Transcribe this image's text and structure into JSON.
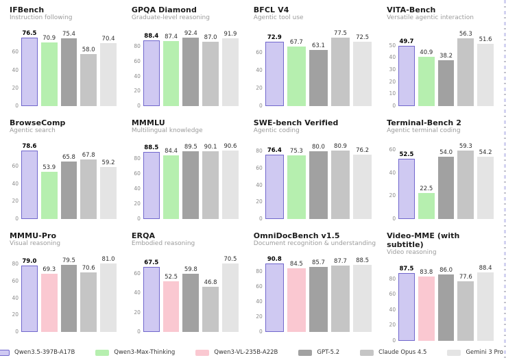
{
  "page": {
    "background": "#ffffff"
  },
  "legend": [
    {
      "model": "Qwen3.5-397B-A17B",
      "fill": "#cfc9f2",
      "border": "#7066cc"
    },
    {
      "model": "Qwen3-Max-Thinking",
      "fill": "#b6efaf",
      "border": "#b6efaf"
    },
    {
      "model": "Qwen3-VL-235B-A22B",
      "fill": "#fac8d1",
      "border": "#fac8d1"
    },
    {
      "model": "GPT-5.2",
      "fill": "#a1a1a1",
      "border": "#a1a1a1"
    },
    {
      "model": "Claude Opus 4.5",
      "fill": "#c5c5c5",
      "border": "#c5c5c5"
    },
    {
      "model": "Gemini 3 Pro",
      "fill": "#e4e4e4",
      "border": "#e4e4e4"
    }
  ],
  "chart_data": [
    {
      "type": "bar",
      "title": "IFBench",
      "subtitle": "Instruction following",
      "ylim": [
        0,
        81
      ],
      "yticks": [
        0,
        20,
        40,
        60
      ],
      "grid": false,
      "legend_position": "bottom-shared",
      "series": [
        {
          "name": "Qwen3.5-397B-A17B",
          "value": 76.5
        },
        {
          "name": "Qwen3-Max-Thinking",
          "value": 70.9
        },
        {
          "name": "GPT-5.2",
          "value": 75.4
        },
        {
          "name": "Claude Opus 4.5",
          "value": 58.0
        },
        {
          "name": "Gemini 3 Pro",
          "value": 70.4
        }
      ]
    },
    {
      "type": "bar",
      "title": "GPQA Diamond",
      "subtitle": "Graduate-level reasoning",
      "ylim": [
        0,
        98
      ],
      "yticks": [
        0,
        20,
        40,
        60,
        80
      ],
      "grid": false,
      "legend_position": "bottom-shared",
      "series": [
        {
          "name": "Qwen3.5-397B-A17B",
          "value": 88.4
        },
        {
          "name": "Qwen3-Max-Thinking",
          "value": 87.4
        },
        {
          "name": "GPT-5.2",
          "value": 92.4
        },
        {
          "name": "Claude Opus 4.5",
          "value": 87.0
        },
        {
          "name": "Gemini 3 Pro",
          "value": 91.9
        }
      ]
    },
    {
      "type": "bar",
      "title": "BFCL V4",
      "subtitle": "Agentic tool use",
      "ylim": [
        0,
        82
      ],
      "yticks": [
        0,
        20,
        40,
        60
      ],
      "grid": false,
      "legend_position": "bottom-shared",
      "series": [
        {
          "name": "Qwen3.5-397B-A17B",
          "value": 72.9
        },
        {
          "name": "Qwen3-Max-Thinking",
          "value": 67.7
        },
        {
          "name": "GPT-5.2",
          "value": 63.1
        },
        {
          "name": "Claude Opus 4.5",
          "value": 77.5
        },
        {
          "name": "Gemini 3 Pro",
          "value": 72.5
        }
      ]
    },
    {
      "type": "bar",
      "title": "VITA-Bench",
      "subtitle": "Versatile agentic interaction",
      "ylim": [
        0,
        60
      ],
      "yticks": [
        0,
        10,
        20,
        30,
        40,
        50
      ],
      "grid": false,
      "legend_position": "bottom-shared",
      "series": [
        {
          "name": "Qwen3.5-397B-A17B",
          "value": 49.7
        },
        {
          "name": "Qwen3-Max-Thinking",
          "value": 40.9
        },
        {
          "name": "GPT-5.2",
          "value": 38.2
        },
        {
          "name": "Claude Opus 4.5",
          "value": 56.3
        },
        {
          "name": "Gemini 3 Pro",
          "value": 51.6
        }
      ]
    },
    {
      "type": "bar",
      "title": "BrowseComp",
      "subtitle": "Agentic search",
      "ylim": [
        0,
        83
      ],
      "yticks": [
        0,
        20,
        40,
        60
      ],
      "grid": false,
      "legend_position": "bottom-shared",
      "series": [
        {
          "name": "Qwen3.5-397B-A17B",
          "value": 78.6
        },
        {
          "name": "Qwen3-Max-Thinking",
          "value": 53.9
        },
        {
          "name": "GPT-5.2",
          "value": 65.8
        },
        {
          "name": "Claude Opus 4.5",
          "value": 67.8
        },
        {
          "name": "Gemini 3 Pro",
          "value": 59.2
        }
      ]
    },
    {
      "type": "bar",
      "title": "MMMLU",
      "subtitle": "Multilingual knowledge",
      "ylim": [
        0,
        96
      ],
      "yticks": [
        0,
        20,
        40,
        60,
        80
      ],
      "grid": false,
      "legend_position": "bottom-shared",
      "series": [
        {
          "name": "Qwen3.5-397B-A17B",
          "value": 88.5
        },
        {
          "name": "Qwen3-Max-Thinking",
          "value": 84.4
        },
        {
          "name": "GPT-5.2",
          "value": 89.5
        },
        {
          "name": "Claude Opus 4.5",
          "value": 90.1
        },
        {
          "name": "Gemini 3 Pro",
          "value": 90.6
        }
      ]
    },
    {
      "type": "bar",
      "title": "SWE-bench Verified",
      "subtitle": "Agentic coding",
      "ylim": [
        0,
        86
      ],
      "yticks": [
        0,
        20,
        40,
        60,
        80
      ],
      "grid": false,
      "legend_position": "bottom-shared",
      "series": [
        {
          "name": "Qwen3.5-397B-A17B",
          "value": 76.4
        },
        {
          "name": "Qwen3-Max-Thinking",
          "value": 75.3
        },
        {
          "name": "GPT-5.2",
          "value": 80.0
        },
        {
          "name": "Claude Opus 4.5",
          "value": 80.9
        },
        {
          "name": "Gemini 3 Pro",
          "value": 76.2
        }
      ]
    },
    {
      "type": "bar",
      "title": "Terminal-Bench 2",
      "subtitle": "Agentic terminal coding",
      "ylim": [
        0,
        63
      ],
      "yticks": [
        0,
        20,
        40,
        60
      ],
      "grid": false,
      "legend_position": "bottom-shared",
      "series": [
        {
          "name": "Qwen3.5-397B-A17B",
          "value": 52.5
        },
        {
          "name": "Qwen3-Max-Thinking",
          "value": 22.5
        },
        {
          "name": "GPT-5.2",
          "value": 54.0
        },
        {
          "name": "Claude Opus 4.5",
          "value": 59.3
        },
        {
          "name": "Gemini 3 Pro",
          "value": 54.2
        }
      ]
    },
    {
      "type": "bar",
      "title": "MMMU-Pro",
      "subtitle": "Visual reasoning",
      "ylim": [
        0,
        86
      ],
      "yticks": [
        0,
        20,
        40,
        60,
        80
      ],
      "grid": false,
      "legend_position": "bottom-shared",
      "series": [
        {
          "name": "Qwen3.5-397B-A17B",
          "value": 79.0
        },
        {
          "name": "Qwen3-VL-235B-A22B",
          "value": 69.3
        },
        {
          "name": "GPT-5.2",
          "value": 79.5
        },
        {
          "name": "Claude Opus 4.5",
          "value": 70.6
        },
        {
          "name": "Gemini 3 Pro",
          "value": 81.0
        }
      ]
    },
    {
      "type": "bar",
      "title": "ERQA",
      "subtitle": "Embodied reasoning",
      "ylim": [
        0,
        75
      ],
      "yticks": [
        0,
        20,
        40,
        60
      ],
      "grid": false,
      "legend_position": "bottom-shared",
      "series": [
        {
          "name": "Qwen3.5-397B-A17B",
          "value": 67.5
        },
        {
          "name": "Qwen3-VL-235B-A22B",
          "value": 52.5
        },
        {
          "name": "GPT-5.2",
          "value": 59.8
        },
        {
          "name": "Claude Opus 4.5",
          "value": 46.8
        },
        {
          "name": "Gemini 3 Pro",
          "value": 70.5
        }
      ]
    },
    {
      "type": "bar",
      "title": "OmniDocBench v1.5",
      "subtitle": "Document recognition & understanding",
      "ylim": [
        0,
        96
      ],
      "yticks": [
        0,
        20,
        40,
        60,
        80
      ],
      "grid": false,
      "legend_position": "bottom-shared",
      "series": [
        {
          "name": "Qwen3.5-397B-A17B",
          "value": 90.8
        },
        {
          "name": "Qwen3-VL-235B-A22B",
          "value": 84.5
        },
        {
          "name": "GPT-5.2",
          "value": 85.7
        },
        {
          "name": "Claude Opus 4.5",
          "value": 87.7
        },
        {
          "name": "Gemini 3 Pro",
          "value": 88.5
        }
      ]
    },
    {
      "type": "bar",
      "title": "Video-MME (with subtitle)",
      "subtitle": "Video reasoning",
      "ylim": [
        0,
        94
      ],
      "yticks": [
        0,
        20,
        40,
        60,
        80
      ],
      "grid": false,
      "legend_position": "bottom-shared",
      "series": [
        {
          "name": "Qwen3.5-397B-A17B",
          "value": 87.5
        },
        {
          "name": "Qwen3-VL-235B-A22B",
          "value": 83.8
        },
        {
          "name": "GPT-5.2",
          "value": 86.0
        },
        {
          "name": "Claude Opus 4.5",
          "value": 77.6
        },
        {
          "name": "Gemini 3 Pro",
          "value": 88.4
        }
      ]
    }
  ]
}
